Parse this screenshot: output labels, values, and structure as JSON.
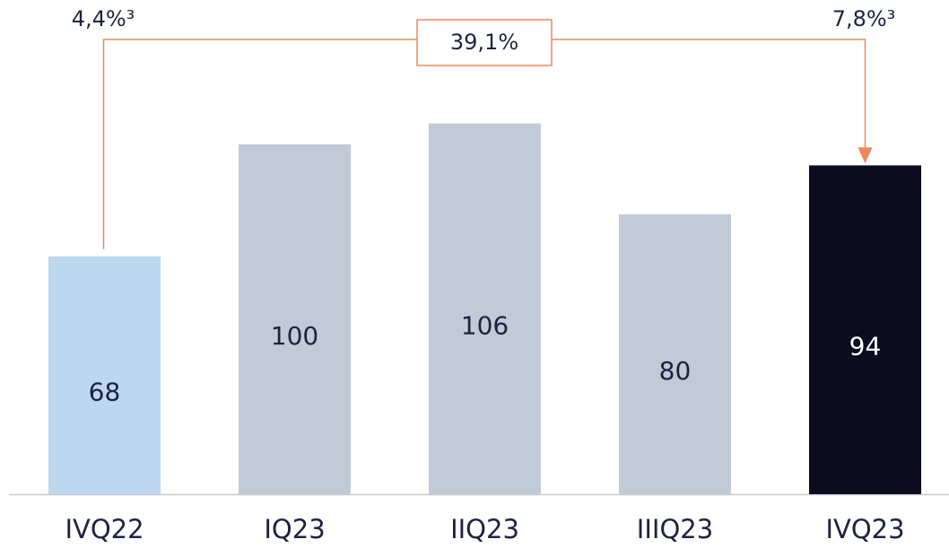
{
  "chart_data": {
    "type": "bar",
    "categories": [
      "IVQ22",
      "IQ23",
      "IIQ23",
      "IIIQ23",
      "IVQ23"
    ],
    "values": [
      68,
      100,
      106,
      80,
      94
    ],
    "colors": [
      "#bdd7ee",
      "#c1cbd7",
      "#c1cbd7",
      "#c1cbd7",
      "#0b0c1e"
    ],
    "ylim": [
      0,
      140
    ],
    "annotations": {
      "start": "4,4%³",
      "end": "7,8%³",
      "change": "39,1%"
    },
    "annotation_color": "#f0875a"
  }
}
